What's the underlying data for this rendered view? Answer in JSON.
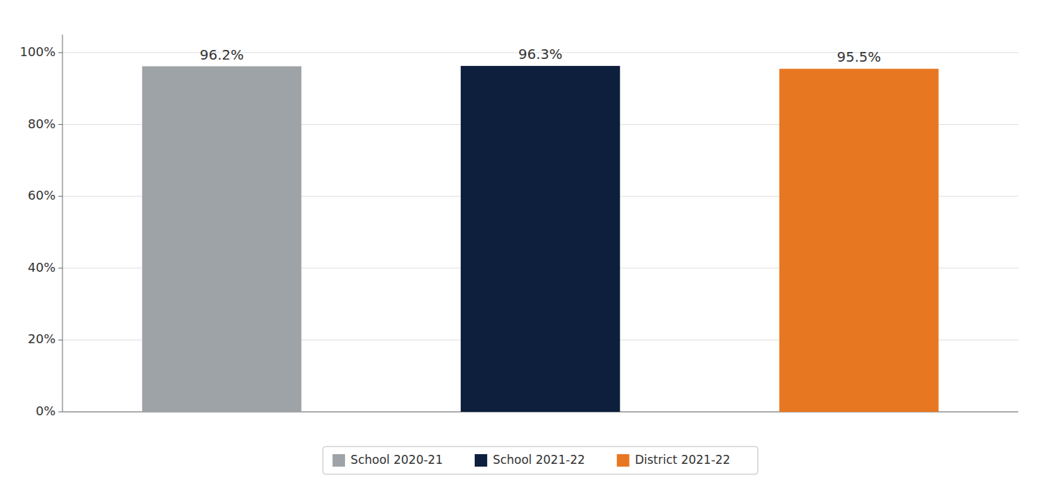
{
  "chart_data": {
    "type": "bar",
    "categories": [
      "School 2020-21",
      "School 2021-22",
      "District 2021-22"
    ],
    "values": [
      96.2,
      96.3,
      95.5
    ],
    "value_labels": [
      "96.2%",
      "96.3%",
      "95.5%"
    ],
    "colors": [
      "#9ea3a8",
      "#0d1f3c",
      "#e87722"
    ],
    "ylim": [
      0,
      105
    ],
    "yticks": [
      {
        "value": 0,
        "label": "0%"
      },
      {
        "value": 20,
        "label": "20%"
      },
      {
        "value": 40,
        "label": "40%"
      },
      {
        "value": 60,
        "label": "60%"
      },
      {
        "value": 80,
        "label": "80%"
      },
      {
        "value": 100,
        "label": "100%"
      }
    ],
    "grid": true,
    "legend": "bottom",
    "data_labels": true,
    "tick_labels": "y"
  }
}
